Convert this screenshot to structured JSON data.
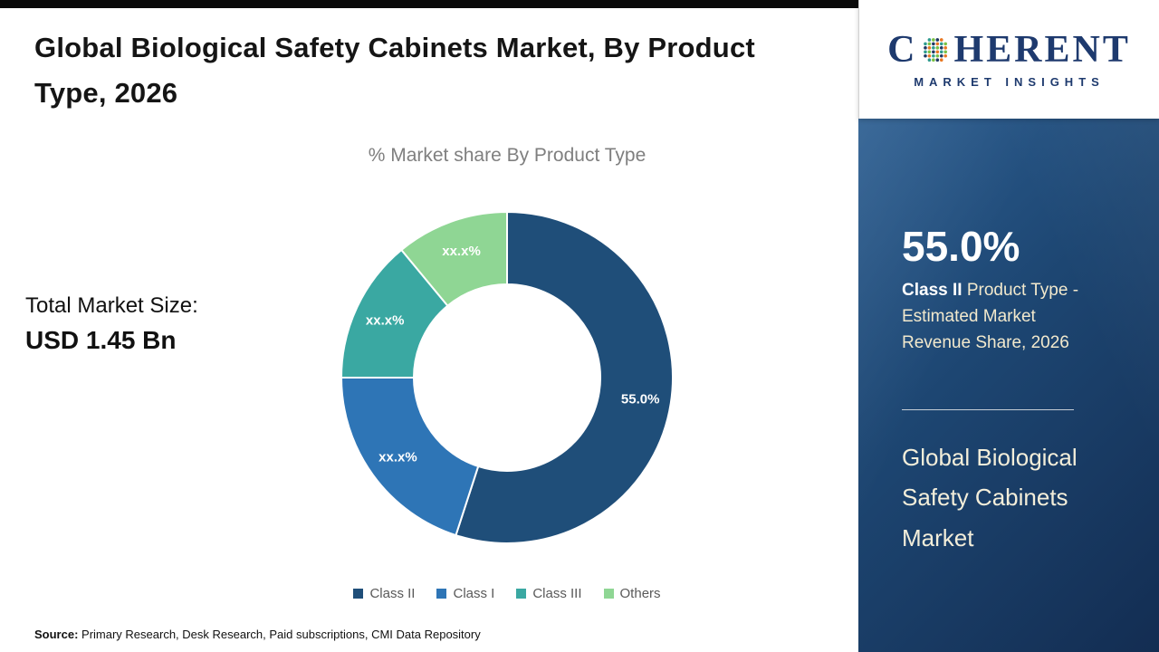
{
  "header": {
    "title": "Global Biological Safety Cabinets Market, By Product Type, 2026"
  },
  "brand": {
    "logo_left": "C",
    "logo_right": "HERENT",
    "tagline": "MARKET INSIGHTS",
    "text_color": "#1e3a6e",
    "globe_colors": [
      "#2e9b8f",
      "#7ac143",
      "#1f3864",
      "#e87722"
    ]
  },
  "left": {
    "total_label": "Total Market Size:",
    "total_value": "USD 1.45 Bn",
    "source_label": "Source:",
    "source_text": " Primary Research, Desk Research, Paid subscriptions, CMI Data Repository"
  },
  "chart_data": {
    "type": "pie",
    "donut": true,
    "title": "% Market share By Product Type",
    "categories": [
      "Class II",
      "Class I",
      "Class III",
      "Others"
    ],
    "values": [
      55,
      20,
      14,
      11
    ],
    "display_labels": [
      "55.0%",
      "xx.x%",
      "xx.x%",
      "xx.x%"
    ],
    "colors": [
      "#1f4e79",
      "#2e75b6",
      "#3aa8a2",
      "#8fd694"
    ],
    "start_angle_deg": 0,
    "legend_position": "bottom",
    "value_note": "Only Class II share (55.0%) is disclosed; other segment values are masked as xx.x% and estimated from arc sizes"
  },
  "panel": {
    "stat_value": "55.0%",
    "stat_bold": "Class II",
    "stat_desc": " Product Type - Estimated Market Revenue Share, 2026",
    "footer_title": "Global Biological Safety Cabinets Market",
    "background": "#1d4672"
  }
}
